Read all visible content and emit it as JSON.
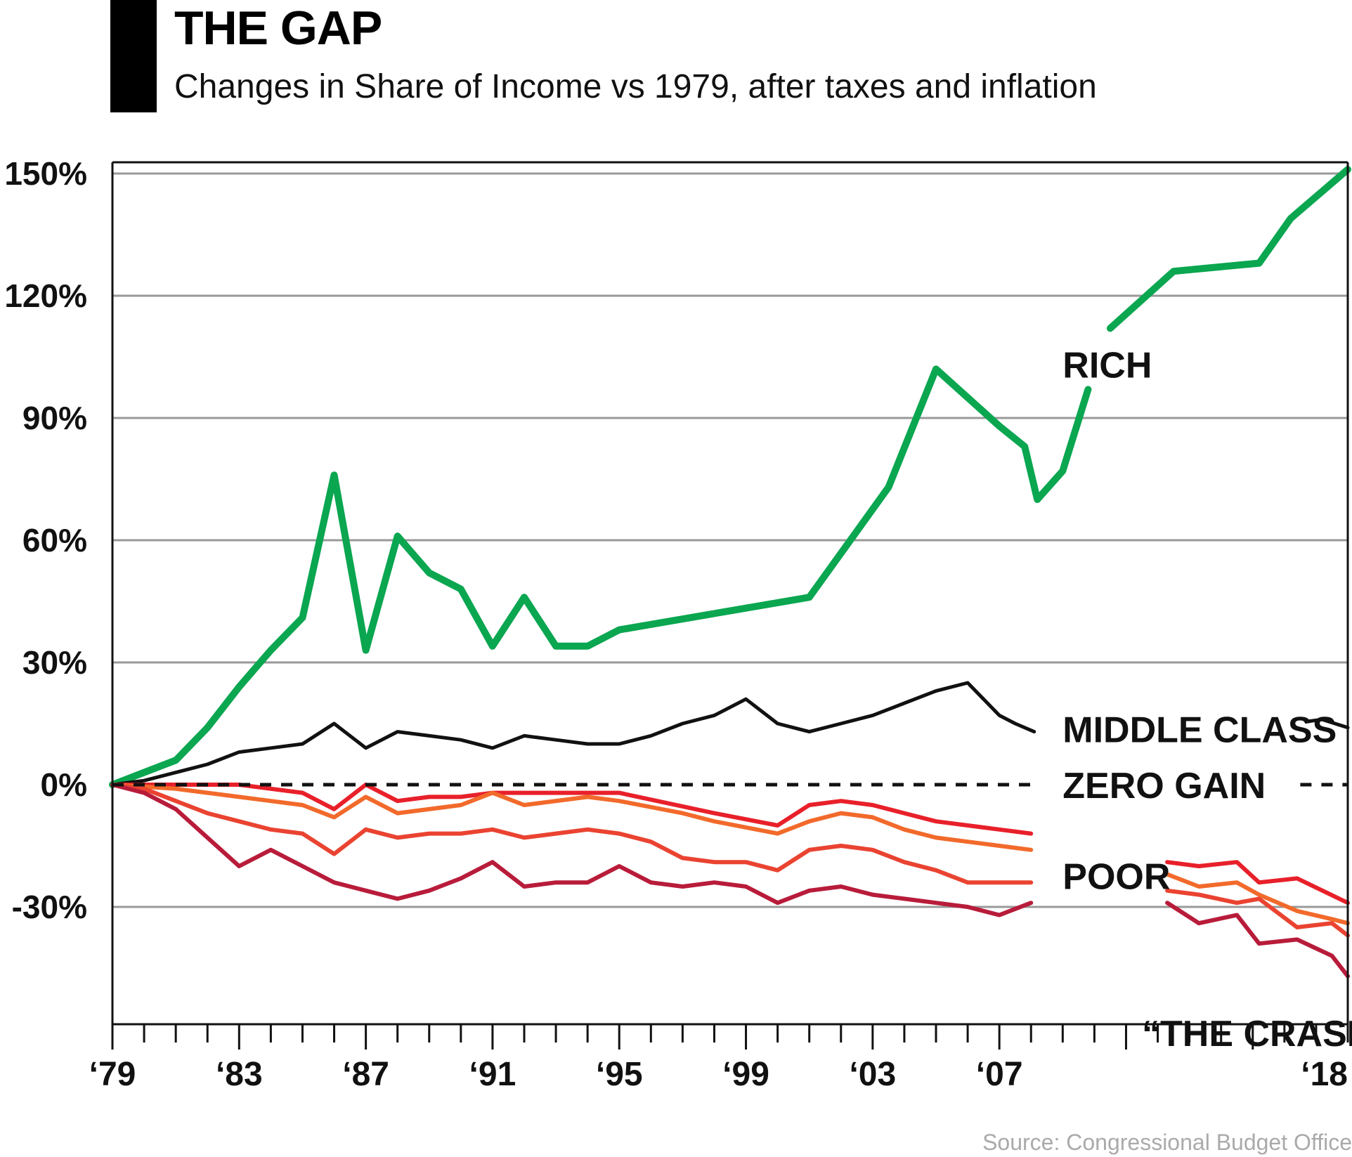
{
  "header": {
    "title": "THE GAP",
    "subtitle": "Changes in Share of Income vs 1979, after taxes and inflation"
  },
  "source": "Source: Congressional Budget Office",
  "colors": {
    "rich": "#0aa650",
    "middle": "#111111",
    "zero_label": "#e8202a",
    "poor_1": "#e8202a",
    "poor_2": "#f26a2b",
    "poor_3": "#ea4331",
    "poor_4": "#b81c3a",
    "grid": "#999999"
  },
  "chart_data": {
    "type": "line",
    "title": "THE GAP",
    "subtitle": "Changes in Share of Income vs 1979, after taxes and inflation",
    "xlabel": "",
    "ylabel": "",
    "xlim": [
      1979,
      2018
    ],
    "ylim": [
      -55,
      150
    ],
    "y_ticks": [
      {
        "value": 150,
        "label": "150%"
      },
      {
        "value": 120,
        "label": "120%"
      },
      {
        "value": 90,
        "label": "90%"
      },
      {
        "value": 60,
        "label": "60%"
      },
      {
        "value": 30,
        "label": "30%"
      },
      {
        "value": 0,
        "label": "0%",
        "highlight": true
      },
      {
        "value": -30,
        "label": "-30%"
      }
    ],
    "x_ticks": [
      {
        "value": 1979,
        "label": "‘79"
      },
      {
        "value": 1983,
        "label": "‘83"
      },
      {
        "value": 1987,
        "label": "‘87"
      },
      {
        "value": 1991,
        "label": "‘91"
      },
      {
        "value": 1995,
        "label": "‘95"
      },
      {
        "value": 1999,
        "label": "‘99"
      },
      {
        "value": 2003,
        "label": "‘03"
      },
      {
        "value": 2007,
        "label": "‘07"
      },
      {
        "value": 2018,
        "label": "‘18",
        "highlight": true
      }
    ],
    "annotations": [
      {
        "text": "RICH",
        "x": 2009.0,
        "y": 103
      },
      {
        "text": "MIDDLE CLASS",
        "x": 2009.0,
        "y": 13.5
      },
      {
        "text": "ZERO GAIN",
        "x": 2009.0,
        "y": -0.2,
        "highlight": true
      },
      {
        "text": "POOR",
        "x": 2009.0,
        "y": -22.5
      },
      {
        "text": "“THE CRASH”",
        "x": 2011.5,
        "y": -61,
        "highlight": true
      }
    ],
    "grid": true,
    "series": [
      {
        "name": "RICH",
        "segments": [
          {
            "x": [
              1979,
              1980,
              1981,
              1982,
              1983,
              1984,
              1985,
              1986,
              1987,
              1988,
              1989,
              1990,
              1991,
              1992,
              1993,
              1994,
              1995,
              2001,
              2003.5,
              2005,
              2006,
              2007,
              2007.8,
              2008.2,
              2009,
              2009.8
            ],
            "y": [
              0,
              3,
              6,
              14,
              24,
              33,
              41,
              76,
              33,
              61,
              52,
              48,
              34,
              46,
              34,
              34,
              38,
              46,
              73,
              102,
              95,
              88,
              83,
              70,
              77,
              97
            ]
          },
          {
            "x": [
              2010.5,
              2012.5,
              2015.2,
              2016.2,
              2018
            ],
            "y": [
              112,
              126,
              128,
              139,
              151
            ]
          }
        ]
      },
      {
        "name": "MIDDLE CLASS",
        "segments": [
          {
            "x": [
              1979,
              1980,
              1981,
              1982,
              1983,
              1984,
              1985,
              1986,
              1987,
              1988,
              1989,
              1990,
              1991,
              1992,
              1993,
              1994,
              1995,
              1996,
              1997,
              1998,
              1999,
              2000,
              2001,
              2002,
              2003,
              2004,
              2005,
              2006,
              2007,
              2007.5,
              2008.1
            ],
            "y": [
              0,
              1,
              3,
              5,
              8,
              9,
              10,
              15,
              9,
              13,
              12,
              11,
              9,
              12,
              11,
              10,
              10,
              12,
              15,
              17,
              21,
              15,
              13,
              15,
              17,
              20,
              23,
              25,
              17,
              15,
              13
            ]
          },
          {
            "x": [
              2016.7,
              2017.2,
              2018
            ],
            "y": [
              15.5,
              16,
              14
            ]
          }
        ]
      },
      {
        "name": "",
        "color_key": "poor_1",
        "segments": [
          {
            "x": [
              1979,
              1981,
              1983,
              1985,
              1986,
              1987,
              1988,
              1989,
              1990,
              1991,
              1995,
              1998,
              2000,
              2001,
              2002,
              2003,
              2004,
              2005,
              2006,
              2007,
              2008
            ],
            "y": [
              0,
              0,
              0,
              -2,
              -6,
              0,
              -4,
              -3,
              -3,
              -2,
              -2,
              -7,
              -10,
              -5,
              -4,
              -5,
              -7,
              -9,
              -10,
              -11,
              -12
            ]
          },
          {
            "x": [
              2012.3,
              2013.3,
              2014.5,
              2015.2,
              2016.4,
              2018
            ],
            "y": [
              -19,
              -20,
              -19,
              -24,
              -23,
              -29
            ]
          }
        ]
      },
      {
        "name": "",
        "color_key": "poor_2",
        "segments": [
          {
            "x": [
              1979,
              1981,
              1983,
              1985,
              1986,
              1987,
              1988,
              1990,
              1991,
              1992,
              1994,
              1995,
              1997,
              1998,
              2000,
              2001,
              2002,
              2003,
              2004,
              2005,
              2006,
              2007,
              2008
            ],
            "y": [
              0,
              -1,
              -3,
              -5,
              -8,
              -3,
              -7,
              -5,
              -2,
              -5,
              -3,
              -4,
              -7,
              -9,
              -12,
              -9,
              -7,
              -8,
              -11,
              -13,
              -14,
              -15,
              -16
            ]
          },
          {
            "x": [
              2012.3,
              2013.3,
              2014.5,
              2015.2,
              2016.4,
              2017.5,
              2018
            ],
            "y": [
              -22,
              -25,
              -24,
              -27,
              -31,
              -33,
              -34
            ]
          }
        ]
      },
      {
        "name": "",
        "color_key": "poor_3",
        "segments": [
          {
            "x": [
              1979,
              1980,
              1981,
              1982,
              1983,
              1984,
              1985,
              1986,
              1987,
              1988,
              1989,
              1990,
              1991,
              1992,
              1993,
              1994,
              1995,
              1996,
              1997,
              1998,
              1999,
              2000,
              2001,
              2002,
              2003,
              2004,
              2005,
              2006,
              2007,
              2008
            ],
            "y": [
              0,
              -1,
              -4,
              -7,
              -9,
              -11,
              -12,
              -17,
              -11,
              -13,
              -12,
              -12,
              -11,
              -13,
              -12,
              -11,
              -12,
              -14,
              -18,
              -19,
              -19,
              -21,
              -16,
              -15,
              -16,
              -19,
              -21,
              -24,
              -24,
              -24
            ]
          },
          {
            "x": [
              2012.3,
              2013.3,
              2014.5,
              2015.2,
              2016.4,
              2017.5,
              2018
            ],
            "y": [
              -26,
              -27,
              -29,
              -28,
              -35,
              -34,
              -37
            ]
          }
        ]
      },
      {
        "name": "",
        "color_key": "poor_4",
        "segments": [
          {
            "x": [
              1979,
              1980,
              1981,
              1982,
              1983,
              1984,
              1985,
              1986,
              1987,
              1988,
              1989,
              1990,
              1991,
              1992,
              1993,
              1994,
              1995,
              1996,
              1997,
              1998,
              1999,
              2000,
              2001,
              2002,
              2003,
              2004,
              2005,
              2006,
              2007,
              2008
            ],
            "y": [
              0,
              -2,
              -6,
              -13,
              -20,
              -16,
              -20,
              -24,
              -26,
              -28,
              -26,
              -23,
              -19,
              -25,
              -24,
              -24,
              -20,
              -24,
              -25,
              -24,
              -25,
              -29,
              -26,
              -25,
              -27,
              -28,
              -29,
              -30,
              -32,
              -29
            ]
          },
          {
            "x": [
              2012.3,
              2013.3,
              2014.5,
              2015.2,
              2016.4,
              2017.5,
              2018
            ],
            "y": [
              -29,
              -34,
              -32,
              -39,
              -38,
              -42,
              -47
            ]
          }
        ]
      },
      {
        "name": "ZERO GAIN",
        "style": "dashed",
        "segments": [
          {
            "x": [
              1979,
              2008
            ],
            "y": [
              0,
              0
            ]
          },
          {
            "x": [
              2016.5,
              2018
            ],
            "y": [
              0,
              0
            ]
          }
        ]
      }
    ]
  }
}
